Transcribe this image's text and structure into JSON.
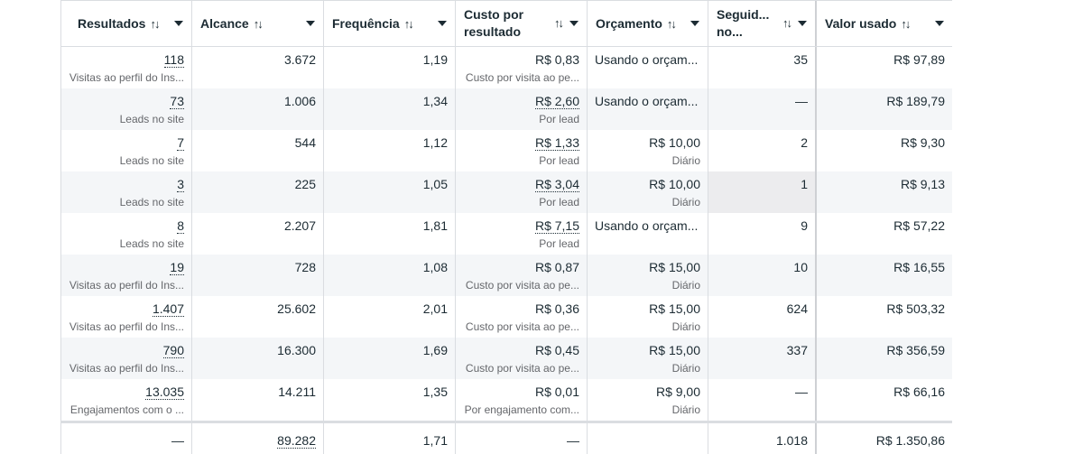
{
  "columns": [
    {
      "label": "Resultados",
      "sort_icon": "↑↓"
    },
    {
      "label": "Alcance",
      "sort_icon": "↑↓"
    },
    {
      "label": "Frequência",
      "sort_icon": "↑↓"
    },
    {
      "label": "Custo por resultado",
      "sort_icon": "↑↓"
    },
    {
      "label": "Orçamento",
      "sort_icon": "↑↓"
    },
    {
      "label": "Seguid... no...",
      "sort_icon": "↑↓"
    },
    {
      "label": "Valor usado",
      "sort_icon": "↑↓"
    }
  ],
  "rows": [
    {
      "results": "118",
      "results_sub": "Visitas ao perfil do Ins...",
      "reach": "3.672",
      "frequency": "1,19",
      "cost": "R$ 0,83",
      "cost_sub": "Custo por visita ao pe...",
      "budget": "Usando o orçam...",
      "budget_sub": "",
      "followers": "35",
      "spent": "R$ 97,89"
    },
    {
      "results": "73",
      "results_sub": "Leads no site",
      "reach": "1.006",
      "frequency": "1,34",
      "cost": "R$ 2,60",
      "cost_sub": "Por lead",
      "budget": "Usando o orçam...",
      "budget_sub": "",
      "followers": "—",
      "spent": "R$ 189,79"
    },
    {
      "results": "7",
      "results_sub": "Leads no site",
      "reach": "544",
      "frequency": "1,12",
      "cost": "R$ 1,33",
      "cost_sub": "Por lead",
      "budget": "R$ 10,00",
      "budget_sub": "Diário",
      "followers": "2",
      "spent": "R$ 9,30"
    },
    {
      "results": "3",
      "results_sub": "Leads no site",
      "reach": "225",
      "frequency": "1,05",
      "cost": "R$ 3,04",
      "cost_sub": "Por lead",
      "budget": "R$ 10,00",
      "budget_sub": "Diário",
      "followers": "1",
      "spent": "R$ 9,13"
    },
    {
      "results": "8",
      "results_sub": "Leads no site",
      "reach": "2.207",
      "frequency": "1,81",
      "cost": "R$ 7,15",
      "cost_sub": "Por lead",
      "budget": "Usando o orçam...",
      "budget_sub": "",
      "followers": "9",
      "spent": "R$ 57,22"
    },
    {
      "results": "19",
      "results_sub": "Visitas ao perfil do Ins...",
      "reach": "728",
      "frequency": "1,08",
      "cost": "R$ 0,87",
      "cost_sub": "Custo por visita ao pe...",
      "budget": "R$ 15,00",
      "budget_sub": "Diário",
      "followers": "10",
      "spent": "R$ 16,55"
    },
    {
      "results": "1.407",
      "results_sub": "Visitas ao perfil do Ins...",
      "reach": "25.602",
      "frequency": "2,01",
      "cost": "R$ 0,36",
      "cost_sub": "Custo por visita ao pe...",
      "budget": "R$ 15,00",
      "budget_sub": "Diário",
      "followers": "624",
      "spent": "R$ 503,32"
    },
    {
      "results": "790",
      "results_sub": "Visitas ao perfil do Ins...",
      "reach": "16.300",
      "frequency": "1,69",
      "cost": "R$ 0,45",
      "cost_sub": "Custo por visita ao pe...",
      "budget": "R$ 15,00",
      "budget_sub": "Diário",
      "followers": "337",
      "spent": "R$ 356,59"
    },
    {
      "results": "13.035",
      "results_sub": "Engajamentos com o ...",
      "reach": "14.211",
      "frequency": "1,35",
      "cost": "R$ 0,01",
      "cost_sub": "Por engajamento com...",
      "budget": "R$ 9,00",
      "budget_sub": "Diário",
      "followers": "—",
      "spent": "R$ 66,16"
    }
  ],
  "totals": {
    "results": "—",
    "reach": "89.282",
    "frequency": "1,71",
    "cost": "—",
    "budget": "",
    "followers": "1.018",
    "spent": "R$ 1.350,86"
  }
}
